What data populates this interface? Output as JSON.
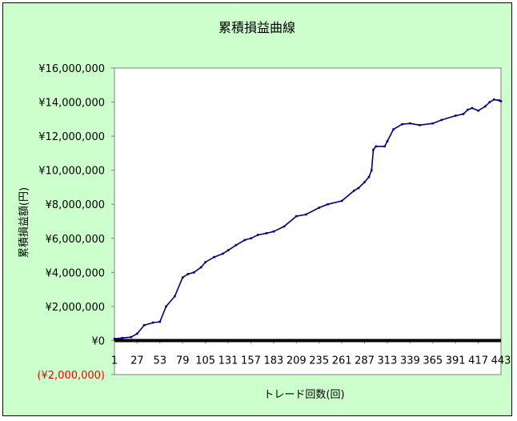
{
  "chart_data": {
    "type": "line",
    "title": "累積損益曲線",
    "xlabel": "トレード回数(回)",
    "ylabel": "累積損益額(円)",
    "ylim": [
      -2000000,
      16000000
    ],
    "y_ticks": [
      {
        "value": 16000000,
        "label": "¥16,000,000"
      },
      {
        "value": 14000000,
        "label": "¥14,000,000"
      },
      {
        "value": 12000000,
        "label": "¥12,000,000"
      },
      {
        "value": 10000000,
        "label": "¥10,000,000"
      },
      {
        "value": 8000000,
        "label": "¥8,000,000"
      },
      {
        "value": 6000000,
        "label": "¥6,000,000"
      },
      {
        "value": 4000000,
        "label": "¥4,000,000"
      },
      {
        "value": 2000000,
        "label": "¥2,000,000"
      },
      {
        "value": 0,
        "label": "¥0"
      },
      {
        "value": -2000000,
        "label": "(¥2,000,000)"
      }
    ],
    "x_ticks": [
      "1",
      "27",
      "53",
      "79",
      "105",
      "131",
      "157",
      "183",
      "209",
      "235",
      "261",
      "287",
      "313",
      "339",
      "365",
      "391",
      "417",
      "443"
    ],
    "xlim": [
      1,
      443
    ],
    "grid": false,
    "colors": {
      "line": "#000080",
      "plot_bg": "#ffffff",
      "chart_bg": "#ccffcc",
      "negative_label": "#ff0000"
    },
    "series": [
      {
        "x": [
          1,
          10,
          20,
          27,
          35,
          45,
          53,
          60,
          70,
          79,
          85,
          92,
          100,
          105,
          115,
          125,
          131,
          140,
          150,
          157,
          165,
          175,
          183,
          195,
          209,
          220,
          235,
          245,
          261,
          275,
          280,
          287,
          292,
          295,
          297,
          300,
          310,
          313,
          320,
          330,
          339,
          350,
          365,
          375,
          391,
          400,
          405,
          410,
          417,
          425,
          430,
          435,
          441,
          443
        ],
        "y": [
          100000,
          150000,
          200000,
          400000,
          900000,
          1050000,
          1100000,
          2000000,
          2600000,
          3700000,
          3900000,
          4000000,
          4300000,
          4600000,
          4900000,
          5100000,
          5300000,
          5600000,
          5900000,
          6000000,
          6200000,
          6300000,
          6400000,
          6700000,
          7300000,
          7400000,
          7800000,
          8000000,
          8200000,
          8800000,
          8950000,
          9300000,
          9600000,
          10000000,
          11200000,
          11400000,
          11400000,
          11700000,
          12400000,
          12700000,
          12750000,
          12650000,
          12750000,
          12950000,
          13200000,
          13300000,
          13550000,
          13650000,
          13500000,
          13750000,
          14000000,
          14150000,
          14100000,
          14050000
        ]
      },
      {
        "x": [
          1,
          443
        ],
        "y": [
          0,
          0
        ]
      }
    ]
  }
}
